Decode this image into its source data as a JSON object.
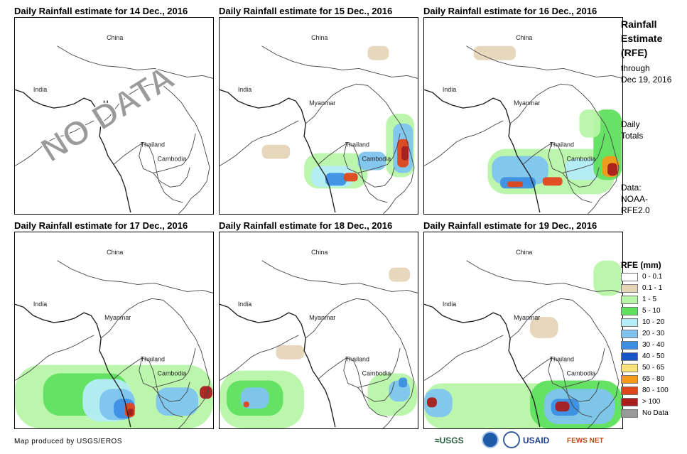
{
  "panels": [
    {
      "title": "Daily Rainfall estimate for 14 Dec., 2016",
      "overlay": "NO DATA",
      "countries": [
        "China",
        "India",
        "M",
        "Thailand",
        "Cambodia"
      ]
    },
    {
      "title": "Daily Rainfall estimate for 15 Dec., 2016",
      "countries": [
        "China",
        "India",
        "Myanmar",
        "Thailand",
        "Cambodia"
      ]
    },
    {
      "title": "Daily Rainfall estimate for 16 Dec., 2016",
      "countries": [
        "China",
        "India",
        "Myanmar",
        "Thailand",
        "Cambodia"
      ]
    },
    {
      "title": "Daily Rainfall estimate for 17 Dec., 2016",
      "countries": [
        "China",
        "India",
        "Myanmar",
        "Thailand",
        "Cambodia"
      ]
    },
    {
      "title": "Daily Rainfall estimate for 18 Dec., 2016",
      "countries": [
        "China",
        "India",
        "Myanmar",
        "Thailand",
        "Cambodia"
      ]
    },
    {
      "title": "Daily Rainfall estimate for 19 Dec., 2016",
      "countries": [
        "China",
        "India",
        "Myanmar",
        "Thailand",
        "Cambodia"
      ]
    }
  ],
  "sidebar": {
    "title_lines": [
      "Rainfall",
      "Estimate",
      "(RFE)"
    ],
    "through_lines": [
      "through",
      "Dec 19, 2016"
    ],
    "totals_lines": [
      "Daily",
      "Totals"
    ],
    "data_lines": [
      "Data:",
      "NOAA-",
      "RFE2.0"
    ]
  },
  "legend": {
    "title": "RFE (mm)",
    "items": [
      {
        "label": "0 - 0.1",
        "color": "#ffffff"
      },
      {
        "label": "0.1 - 1",
        "color": "#e6d5b8"
      },
      {
        "label": "1 - 5",
        "color": "#b8f5a8"
      },
      {
        "label": "5 - 10",
        "color": "#5fe05f"
      },
      {
        "label": "10 - 20",
        "color": "#b4ecf8"
      },
      {
        "label": "20 - 30",
        "color": "#7ec4ef"
      },
      {
        "label": "30 - 40",
        "color": "#3d8fe3"
      },
      {
        "label": "40 - 50",
        "color": "#1a55c8"
      },
      {
        "label": "50 - 65",
        "color": "#f8e27a"
      },
      {
        "label": "65 - 80",
        "color": "#f59a1a"
      },
      {
        "label": "80 - 100",
        "color": "#e0461b"
      },
      {
        "label": "> 100",
        "color": "#a81e1e"
      },
      {
        "label": "No Data",
        "color": "#999999"
      }
    ]
  },
  "footer": {
    "credit": "Map produced by USGS/EROS",
    "logos": {
      "usgs": "≈USGS",
      "noaa": "noaa-logo",
      "doi": "doi-logo",
      "usaid": "USAID",
      "fews": "FEWS NET"
    }
  }
}
